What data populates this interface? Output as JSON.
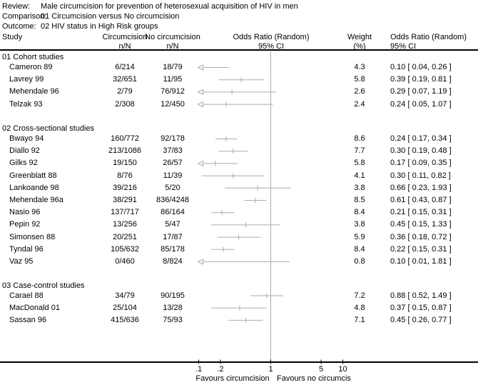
{
  "meta": {
    "review_label": "Review:",
    "review": "Male circumcision for prevention of heterosexual acquisition of HIV in men",
    "comparison_label": "Comparison:",
    "comparison": "01 Circumcision versus No circumcision",
    "outcome_label": "Outcome:",
    "outcome": "02 HIV status in High Risk groups"
  },
  "columns": {
    "study": "Study",
    "circumcision": "Circumcision",
    "circumcision_sub": "n/N",
    "no_circumcision": "No circumcision",
    "no_circumcision_sub": "n/N",
    "or_plot": "Odds Ratio (Random)",
    "or_plot_sub": "95% CI",
    "weight": "Weight",
    "weight_sub": "(%)",
    "or_value": "Odds Ratio (Random)",
    "or_value_sub": "95% CI"
  },
  "colors": {
    "plot_gray": "#ababab",
    "text": "#000000",
    "rule": "#000000",
    "background": "#ffffff"
  },
  "chart_data": {
    "type": "forest",
    "scale": "log",
    "null_line": 1,
    "x_range": [
      0.1,
      10
    ],
    "axis": {
      "ticks": [
        {
          "label": ".1",
          "value": 0.1
        },
        {
          "label": ".2",
          "value": 0.2
        },
        {
          "label": "1",
          "value": 1
        },
        {
          "label": "5",
          "value": 5
        },
        {
          "label": "10",
          "value": 10
        }
      ],
      "favours_left": "Favours circumcision",
      "favours_right": "Favours no circumcis"
    },
    "sections": [
      {
        "label": "01 Cohort studies",
        "studies": [
          {
            "name": "Cameron 89",
            "circ_nN": "6/214",
            "nocirc_nN": "18/79",
            "weight": "4.3",
            "or": 0.1,
            "ci_low": 0.04,
            "ci_high": 0.26,
            "or_text": "0.10 [ 0.04, 0.26 ]"
          },
          {
            "name": "Lavrey 99",
            "circ_nN": "32/651",
            "nocirc_nN": "11/95",
            "weight": "5.8",
            "or": 0.39,
            "ci_low": 0.19,
            "ci_high": 0.81,
            "or_text": "0.39 [ 0.19, 0.81 ]"
          },
          {
            "name": "Mehendale 96",
            "circ_nN": "2/79",
            "nocirc_nN": "76/912",
            "weight": "2.6",
            "or": 0.29,
            "ci_low": 0.07,
            "ci_high": 1.19,
            "or_text": "0.29 [ 0.07, 1.19 ]"
          },
          {
            "name": "Telzak 93",
            "circ_nN": "2/308",
            "nocirc_nN": "12/450",
            "weight": "2.4",
            "or": 0.24,
            "ci_low": 0.05,
            "ci_high": 1.07,
            "or_text": "0.24 [ 0.05, 1.07 ]"
          }
        ]
      },
      {
        "label": "02 Cross-sectional studies",
        "studies": [
          {
            "name": "Bwayo 94",
            "circ_nN": "160/772",
            "nocirc_nN": "92/178",
            "weight": "8.6",
            "or": 0.24,
            "ci_low": 0.17,
            "ci_high": 0.34,
            "or_text": "0.24 [ 0.17, 0.34 ]"
          },
          {
            "name": "Diallo 92",
            "circ_nN": "213/1086",
            "nocirc_nN": "37/83",
            "weight": "7.7",
            "or": 0.3,
            "ci_low": 0.19,
            "ci_high": 0.48,
            "or_text": "0.30 [ 0.19, 0.48 ]"
          },
          {
            "name": "Gilks 92",
            "circ_nN": "19/150",
            "nocirc_nN": "26/57",
            "weight": "5.8",
            "or": 0.17,
            "ci_low": 0.09,
            "ci_high": 0.35,
            "or_text": "0.17 [ 0.09, 0.35 ]"
          },
          {
            "name": "Greenblatt 88",
            "circ_nN": "8/76",
            "nocirc_nN": "11/39",
            "weight": "4.1",
            "or": 0.3,
            "ci_low": 0.11,
            "ci_high": 0.82,
            "or_text": "0.30 [ 0.11, 0.82 ]"
          },
          {
            "name": "Lankoande 98",
            "circ_nN": "39/216",
            "nocirc_nN": "5/20",
            "weight": "3.8",
            "or": 0.66,
            "ci_low": 0.23,
            "ci_high": 1.93,
            "or_text": "0.66 [ 0.23, 1.93 ]"
          },
          {
            "name": "Mehendale 96a",
            "circ_nN": "38/291",
            "nocirc_nN": "836/4248",
            "weight": "8.5",
            "or": 0.61,
            "ci_low": 0.43,
            "ci_high": 0.87,
            "or_text": "0.61 [ 0.43, 0.87 ]"
          },
          {
            "name": "Nasio 96",
            "circ_nN": "137/717",
            "nocirc_nN": "86/164",
            "weight": "8.4",
            "or": 0.21,
            "ci_low": 0.15,
            "ci_high": 0.31,
            "or_text": "0.21 [ 0.15, 0.31 ]"
          },
          {
            "name": "Pepin 92",
            "circ_nN": "13/256",
            "nocirc_nN": "5/47",
            "weight": "3.8",
            "or": 0.45,
            "ci_low": 0.15,
            "ci_high": 1.33,
            "or_text": "0.45 [ 0.15, 1.33 ]"
          },
          {
            "name": "Simonsen 88",
            "circ_nN": "20/251",
            "nocirc_nN": "17/87",
            "weight": "5.9",
            "or": 0.36,
            "ci_low": 0.18,
            "ci_high": 0.72,
            "or_text": "0.36 [ 0.18, 0.72 ]"
          },
          {
            "name": "Tyndal 96",
            "circ_nN": "105/632",
            "nocirc_nN": "85/178",
            "weight": "8.4",
            "or": 0.22,
            "ci_low": 0.15,
            "ci_high": 0.31,
            "or_text": "0.22 [ 0.15, 0.31 ]"
          },
          {
            "name": "Vaz 95",
            "circ_nN": "0/460",
            "nocirc_nN": "8/824",
            "weight": "0.8",
            "or": 0.1,
            "ci_low": 0.01,
            "ci_high": 1.81,
            "or_text": "0.10 [ 0.01, 1.81 ]"
          }
        ]
      },
      {
        "label": "03 Case-control studies",
        "studies": [
          {
            "name": "Carael 88",
            "circ_nN": "34/79",
            "nocirc_nN": "90/195",
            "weight": "7.2",
            "or": 0.88,
            "ci_low": 0.52,
            "ci_high": 1.49,
            "or_text": "0.88 [ 0.52, 1.49 ]"
          },
          {
            "name": "MacDonald 01",
            "circ_nN": "25/104",
            "nocirc_nN": "13/28",
            "weight": "4.8",
            "or": 0.37,
            "ci_low": 0.15,
            "ci_high": 0.87,
            "or_text": "0.37 [ 0.15, 0.87 ]"
          },
          {
            "name": "Sassan 96",
            "circ_nN": "415/636",
            "nocirc_nN": "75/93",
            "weight": "7.1",
            "or": 0.45,
            "ci_low": 0.26,
            "ci_high": 0.77,
            "or_text": "0.45 [ 0.26, 0.77 ]"
          }
        ]
      }
    ]
  }
}
